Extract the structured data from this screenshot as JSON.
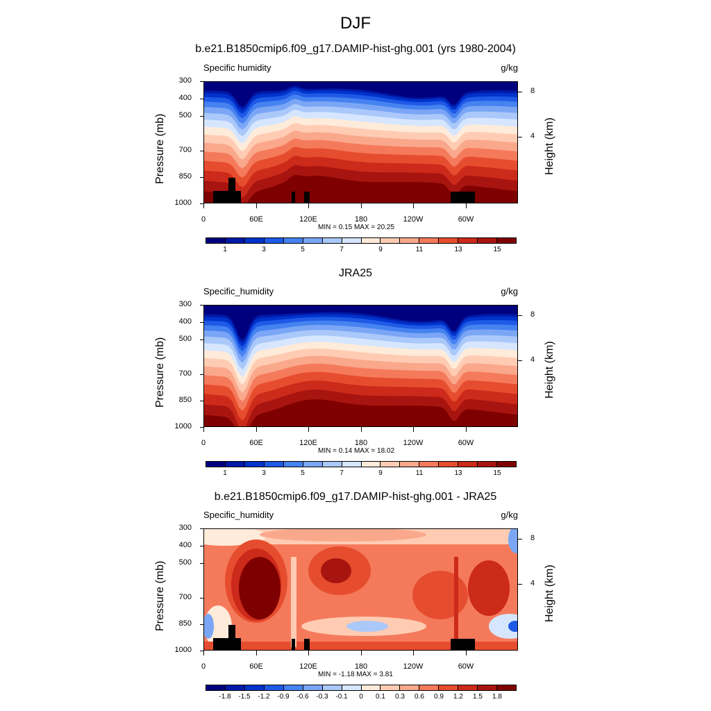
{
  "figure_title": "DJF",
  "colors": [
    "#00007f",
    "#0019a6",
    "#0033cc",
    "#1e5ae6",
    "#4682f0",
    "#7aa6f5",
    "#abc8fa",
    "#d6e6ff",
    "#ffebd9",
    "#ffccb3",
    "#faa88c",
    "#f57a5c",
    "#e64d2e",
    "#cc2a1a",
    "#a81410",
    "#7f0000"
  ],
  "chart_data": [
    {
      "type": "heatmap",
      "title": "b.e21.B1850cmip6.f09_g17.DAMIP-hist-ghg.001 (yrs 1980-2004)",
      "left_string": "Specific humidity",
      "units": "g/kg",
      "ylabel": "Pressure (mb)",
      "y2label": "Height (km)",
      "y_ticks": [
        "300",
        "400",
        "500",
        "700",
        "850",
        "1000"
      ],
      "y2_ticks": [
        "8",
        "4"
      ],
      "x_ticks": [
        "0",
        "60E",
        "120E",
        "180",
        "120W",
        "60W"
      ],
      "minmax": "MIN =   0.15  MAX =  20.25",
      "colorbar_labels": [
        "1",
        "3",
        "5",
        "7",
        "9",
        "11",
        "13",
        "15"
      ],
      "level_values": [
        1.0,
        3.0,
        5.0,
        7.0,
        9.0,
        11.0,
        13.0,
        15.0
      ],
      "surface_height_mb": 880
    },
    {
      "type": "heatmap",
      "title": "JRA25",
      "left_string": "Specific_humidity",
      "units": "g/kg",
      "ylabel": "Pressure (mb)",
      "y2label": "Height (km)",
      "y_ticks": [
        "300",
        "400",
        "500",
        "700",
        "850",
        "1000"
      ],
      "y2_ticks": [
        "8",
        "4"
      ],
      "x_ticks": [
        "0",
        "60E",
        "120E",
        "180",
        "120W",
        "60W"
      ],
      "minmax": "MIN =   0.14  MAX =  18.02",
      "colorbar_labels": [
        "1",
        "3",
        "5",
        "7",
        "9",
        "11",
        "13",
        "15"
      ],
      "level_values": [
        1.0,
        3.0,
        5.0,
        7.0,
        9.0,
        11.0,
        13.0,
        15.0
      ]
    },
    {
      "type": "heatmap",
      "title": "b.e21.B1850cmip6.f09_g17.DAMIP-hist-ghg.001 - JRA25",
      "left_string": "Specific_humidity",
      "units": "g/kg",
      "ylabel": "Pressure (mb)",
      "y2label": "Height (km)",
      "y_ticks": [
        "300",
        "400",
        "500",
        "700",
        "850",
        "1000"
      ],
      "y2_ticks": [
        "8",
        "4"
      ],
      "x_ticks": [
        "0",
        "60E",
        "120E",
        "180",
        "120W",
        "60W"
      ],
      "minmax": "MIN =  -1.18  MAX =   3.81",
      "colorbar_labels": [
        "-1.8",
        "-1.5",
        "-1.2",
        "-0.9",
        "-0.6",
        "-0.3",
        "-0.1",
        "0",
        "0.1",
        "0.3",
        "0.6",
        "0.9",
        "1.2",
        "1.5",
        "1.8"
      ],
      "level_values": [
        -1.8,
        -1.5,
        -1.2,
        -0.9,
        -0.6,
        -0.3,
        -0.1,
        0,
        0.1,
        0.3,
        0.6,
        0.9,
        1.2,
        1.5,
        1.8
      ]
    }
  ]
}
